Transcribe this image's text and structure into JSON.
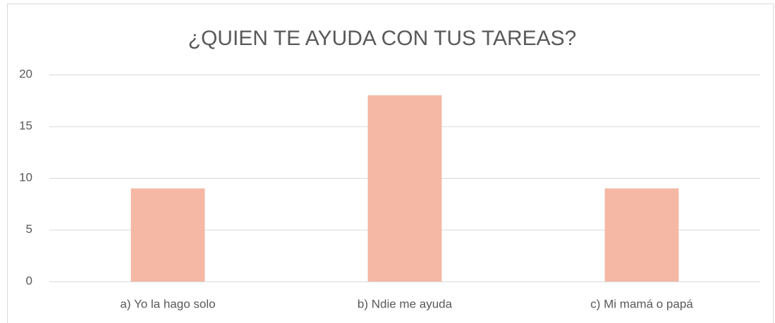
{
  "chart_data": {
    "type": "bar",
    "title": "¿QUIEN TE AYUDA CON TUS TAREAS?",
    "categories": [
      "a) Yo la hago solo",
      "b) Ndie me ayuda",
      "c) Mi mamá o papá"
    ],
    "values": [
      9,
      18,
      9
    ],
    "color": "#f4b8a4",
    "ylim": [
      0,
      20
    ],
    "yticks": [
      0,
      5,
      10,
      15,
      20
    ],
    "grid": true
  }
}
